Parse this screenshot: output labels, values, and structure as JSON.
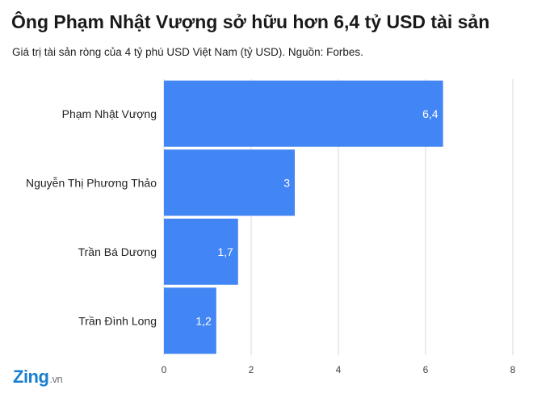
{
  "title": "Ông Phạm Nhật Vượng sở hữu hơn 6,4 tỷ USD tài sản",
  "subtitle": "Giá trị tài sản ròng của 4 tỷ phú USD Việt Nam (tỷ USD). Nguồn: Forbes.",
  "logo": {
    "main": "Zing",
    "suffix": ".vn"
  },
  "colors": {
    "bar": "#4285f4",
    "grid": "#d9d9d9",
    "text": "#222222"
  },
  "chart_data": {
    "type": "bar",
    "orientation": "horizontal",
    "categories": [
      "Phạm Nhật Vượng",
      "Nguyễn Thị Phương Thảo",
      "Trần Bá Dương",
      "Trần Đình Long"
    ],
    "values": [
      6.4,
      3,
      1.7,
      1.2
    ],
    "data_labels": [
      "6,4",
      "3",
      "1,7",
      "1,2"
    ],
    "xlim": [
      0,
      8
    ],
    "xticks": [
      0,
      2,
      4,
      6,
      8
    ],
    "grid": true,
    "legend": "none"
  }
}
